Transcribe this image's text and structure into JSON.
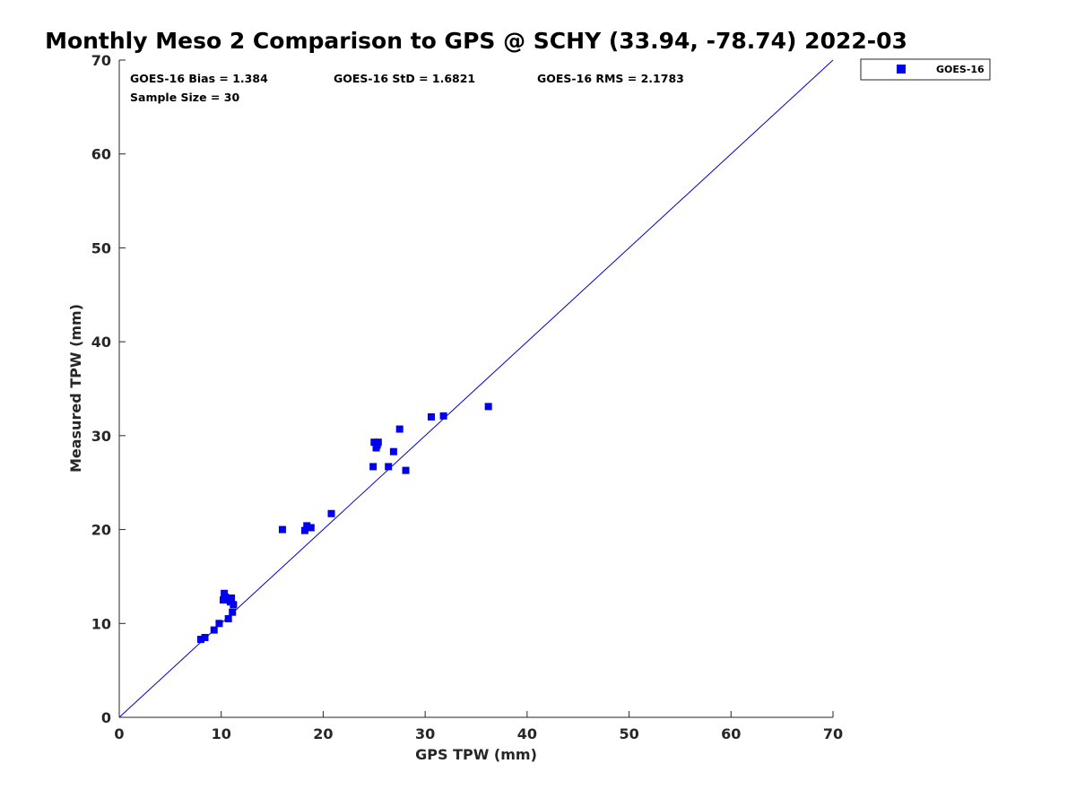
{
  "chart_data": {
    "type": "scatter",
    "title": "Monthly Meso 2 Comparison to GPS @ SCHY (33.94, -78.74) 2022-03",
    "xlabel": "GPS TPW (mm)",
    "ylabel": "Measured TPW (mm)",
    "xlim": [
      0,
      70
    ],
    "ylim": [
      0,
      70
    ],
    "xticks": [
      0,
      10,
      20,
      30,
      40,
      50,
      60,
      70
    ],
    "yticks": [
      0,
      10,
      20,
      30,
      40,
      50,
      60,
      70
    ],
    "legend_position": "outside-top-right",
    "reference_line": {
      "name": "1:1 line",
      "from": [
        0,
        0
      ],
      "to": [
        70,
        70
      ],
      "color": "#0000cc"
    },
    "stats": [
      {
        "label": "GOES-16 Bias = 1.384"
      },
      {
        "label": "GOES-16 StD = 1.6821"
      },
      {
        "label": "GOES-16 RMS = 2.1783"
      },
      {
        "label": "Sample Size = 30"
      }
    ],
    "series": [
      {
        "name": "GOES-16",
        "color": "#0000ee",
        "marker": "square",
        "points": [
          [
            8.0,
            8.3
          ],
          [
            8.4,
            8.5
          ],
          [
            9.3,
            9.3
          ],
          [
            9.8,
            10.0
          ],
          [
            10.7,
            10.5
          ],
          [
            11.1,
            11.2
          ],
          [
            11.2,
            12.0
          ],
          [
            10.2,
            12.5
          ],
          [
            10.3,
            13.2
          ],
          [
            10.5,
            12.6
          ],
          [
            10.9,
            12.3
          ],
          [
            11.0,
            12.7
          ],
          [
            16.0,
            20.0
          ],
          [
            18.2,
            19.9
          ],
          [
            18.4,
            20.4
          ],
          [
            18.8,
            20.2
          ],
          [
            20.8,
            21.7
          ],
          [
            24.9,
            26.7
          ],
          [
            26.4,
            26.7
          ],
          [
            28.1,
            26.3
          ],
          [
            26.9,
            28.3
          ],
          [
            25.2,
            28.7
          ],
          [
            25.0,
            29.3
          ],
          [
            25.4,
            29.3
          ],
          [
            27.5,
            30.7
          ],
          [
            30.6,
            32.0
          ],
          [
            31.8,
            32.1
          ],
          [
            36.2,
            33.1
          ],
          [
            25.3,
            29.0
          ],
          [
            10.4,
            12.8
          ]
        ]
      }
    ]
  }
}
